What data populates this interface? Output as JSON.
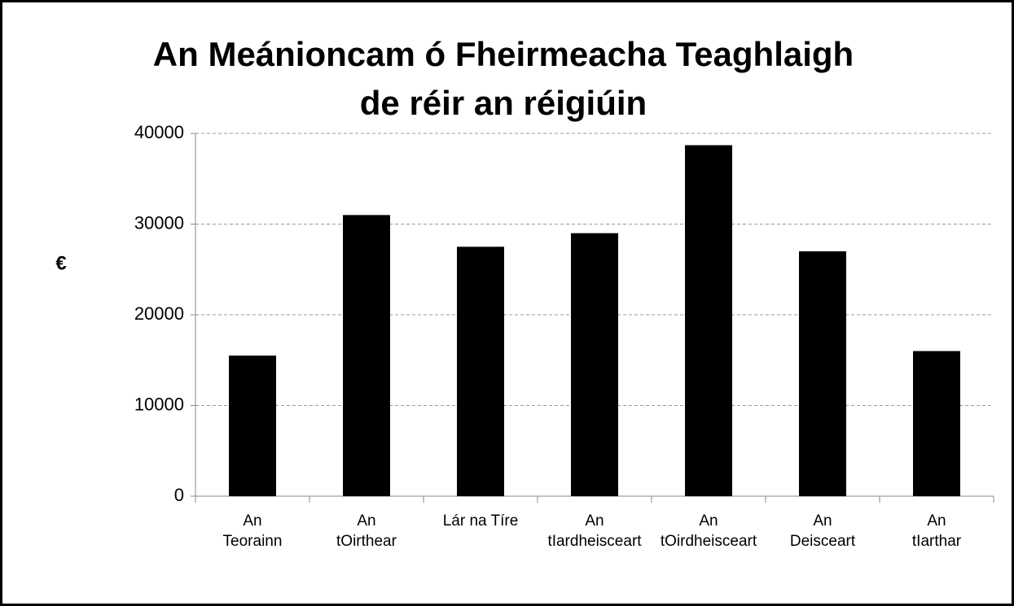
{
  "chart_data": {
    "type": "bar",
    "title": "An Meánioncam ó Fheirmeacha Teaghlaigh",
    "subtitle": "de réir an réigiúin",
    "y_label": "€",
    "categories": [
      "An\nTeorainn",
      "An\ntOirthear",
      "Lár na Tíre",
      "An\ntIardheisceart",
      "An\ntOirdheisceart",
      "An\nDeisceart",
      "An\ntIarthar"
    ],
    "values": [
      15500,
      31000,
      27500,
      29000,
      38700,
      27000,
      16000
    ],
    "color": "#000000",
    "ylim": [
      0,
      40000
    ],
    "yticks": [
      0,
      10000,
      20000,
      30000,
      40000
    ],
    "grid": true
  }
}
